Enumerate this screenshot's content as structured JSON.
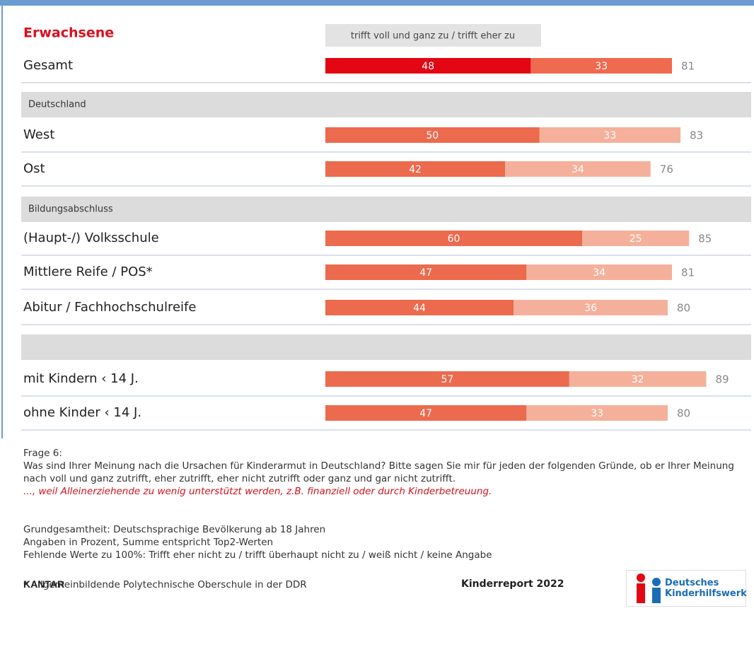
{
  "chart_data": {
    "type": "bar",
    "stacked": true,
    "title": "Erwachsene",
    "legend_label": "trifft voll und ganz zu / trifft eher zu",
    "categories": [
      "Gesamt",
      "West",
      "Ost",
      "(Haupt-/) Volksschule",
      "Mittlere Reife / POS*",
      "Abitur / Fachhochschulreife",
      "mit Kindern ‹ 14 J.",
      "ohne Kinder ‹ 14 J."
    ],
    "group_labels": [
      "Deutschland",
      "Bildungsabschluss",
      null
    ],
    "series": [
      {
        "name": "trifft voll und ganz zu",
        "colors": [
          "#e30613",
          "#ec6a4e",
          "#ec6a4e",
          "#ec6a4e",
          "#ec6a4e",
          "#ec6a4e",
          "#ec6a4e",
          "#ec6a4e"
        ],
        "values": [
          48,
          50,
          42,
          60,
          47,
          44,
          57,
          47
        ]
      },
      {
        "name": "trifft eher zu",
        "colors": [
          "#ef6a4f",
          "#f5b09b",
          "#f5b09b",
          "#f5b09b",
          "#f5b09b",
          "#f5b09b",
          "#f5b09b",
          "#f5b09b"
        ],
        "values": [
          33,
          33,
          34,
          25,
          34,
          36,
          32,
          33
        ]
      }
    ],
    "totals": [
      81,
      83,
      76,
      85,
      81,
      80,
      89,
      80
    ]
  },
  "notes": {
    "question_label": "Frage 6:",
    "question": "Was sind Ihrer Meinung nach die Ursachen für Kinderarmut in Deutschland? Bitte sagen Sie mir für jeden der folgenden Gründe, ob er Ihrer Meinung nach voll und ganz zutrifft, eher zutrifft, eher nicht zutrifft oder ganz und gar nicht zutrifft.",
    "item": "..., weil Alleinerziehende zu wenig unterstützt werden, z.B. finanziell oder durch Kinderbetreuung.",
    "base": "Grundgesamtheit: Deutschsprachige Bevölkerung ab 18 Jahren",
    "units": "Angaben in Prozent, Summe entspricht Top2-Werten",
    "missing": "Fehlende Werte zu 100%: Trifft eher nicht zu / trifft überhaupt nicht zu / weiß nicht / keine Angabe",
    "footnote": "* Allgemeinbildende Polytechnische Oberschule in der DDR"
  },
  "footer": {
    "source": "KANTAR",
    "report": "Kinderreport 2022",
    "logo_line1": "Deutsches",
    "logo_line2": "Kinderhilfswerk"
  }
}
